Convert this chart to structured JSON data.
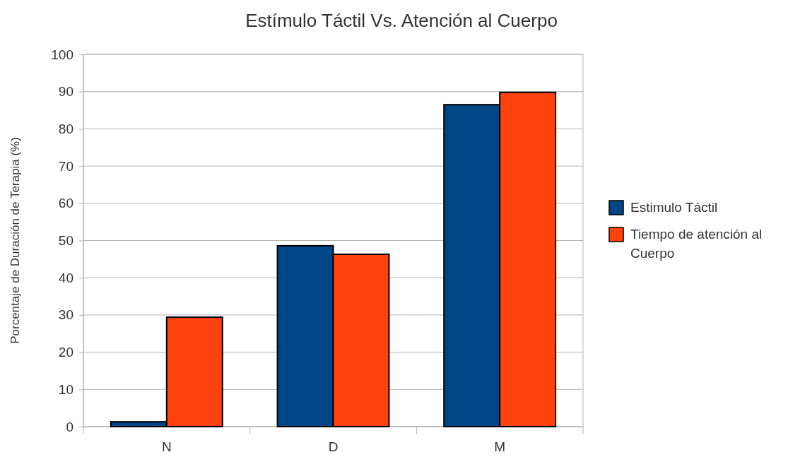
{
  "chart_data": {
    "type": "bar",
    "title": "Estímulo Táctil Vs. Atención al Cuerpo",
    "ylabel": "Porcentaje de Duración de Terapia (%)",
    "categories": [
      "N",
      "D",
      "M"
    ],
    "series": [
      {
        "name": "Estimulo Táctil",
        "color": "#004586",
        "values": [
          1.3,
          48.6,
          86.5
        ]
      },
      {
        "name": "Tiempo de atención al Cuerpo",
        "color": "#ff420e",
        "values": [
          29.4,
          46.3,
          89.8
        ]
      }
    ],
    "ylim": [
      0,
      100
    ],
    "yticks": [
      0,
      10,
      20,
      30,
      40,
      50,
      60,
      70,
      80,
      90,
      100
    ],
    "grid": "y",
    "legend": "right"
  }
}
